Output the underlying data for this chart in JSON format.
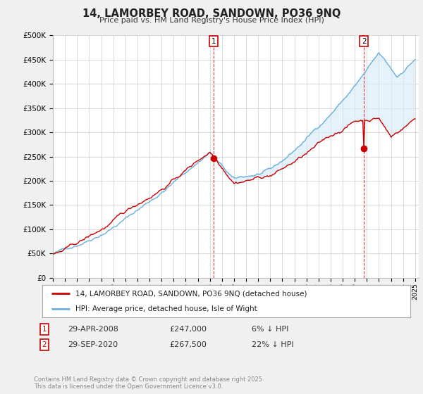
{
  "title": "14, LAMORBEY ROAD, SANDOWN, PO36 9NQ",
  "subtitle": "Price paid vs. HM Land Registry's House Price Index (HPI)",
  "ylabel_ticks": [
    "£0",
    "£50K",
    "£100K",
    "£150K",
    "£200K",
    "£250K",
    "£300K",
    "£350K",
    "£400K",
    "£450K",
    "£500K"
  ],
  "ytick_values": [
    0,
    50000,
    100000,
    150000,
    200000,
    250000,
    300000,
    350000,
    400000,
    450000,
    500000
  ],
  "ylim": [
    0,
    500000
  ],
  "x_start_year": 1995,
  "x_end_year": 2025,
  "hpi_color": "#6ab0de",
  "price_color": "#cc0000",
  "fill_color": "#d6eaf8",
  "annotation1": {
    "label": "1",
    "date": "29-APR-2008",
    "price": "£247,000",
    "pct": "6% ↓ HPI"
  },
  "annotation2": {
    "label": "2",
    "date": "29-SEP-2020",
    "price": "£267,500",
    "pct": "22% ↓ HPI"
  },
  "legend_line1": "14, LAMORBEY ROAD, SANDOWN, PO36 9NQ (detached house)",
  "legend_line2": "HPI: Average price, detached house, Isle of Wight",
  "footer": "Contains HM Land Registry data © Crown copyright and database right 2025.\nThis data is licensed under the Open Government Licence v3.0.",
  "bg_color": "#f0f0f0",
  "plot_bg_color": "#ffffff",
  "grid_color": "#cccccc",
  "t1_year": 2008.33,
  "t1_price": 247000,
  "t2_year": 2020.75,
  "t2_price": 267500
}
